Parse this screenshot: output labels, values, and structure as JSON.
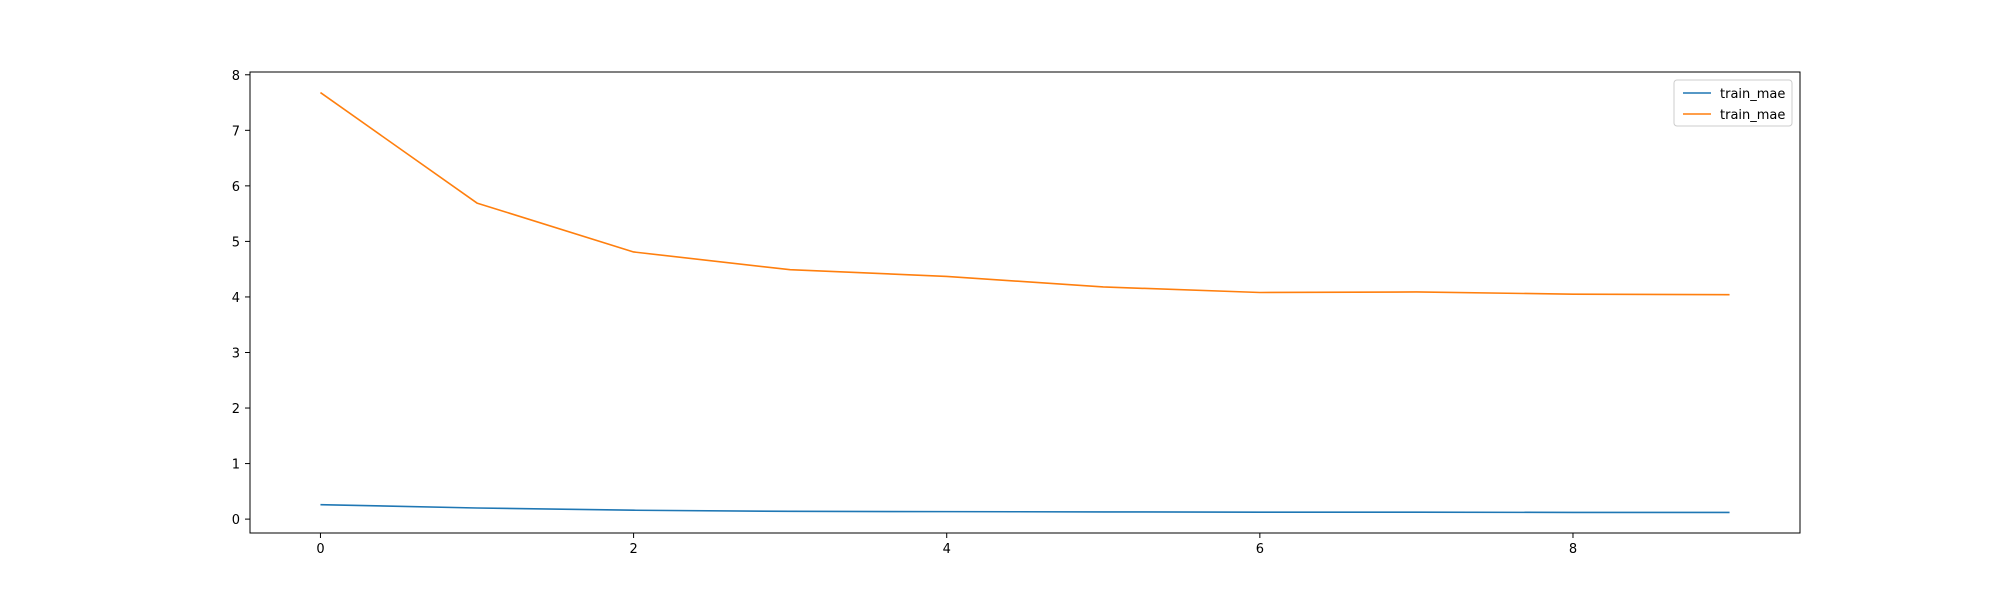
{
  "chart_data": {
    "type": "line",
    "x": [
      0,
      1,
      2,
      3,
      4,
      5,
      6,
      7,
      8,
      9
    ],
    "series": [
      {
        "name": "train_mae",
        "color": "#1f77b4",
        "values": [
          0.26,
          0.2,
          0.16,
          0.14,
          0.135,
          0.13,
          0.125,
          0.125,
          0.12,
          0.12
        ]
      },
      {
        "name": "train_mae",
        "color": "#ff7f0e",
        "values": [
          7.68,
          5.69,
          4.81,
          4.49,
          4.37,
          4.18,
          4.08,
          4.09,
          4.05,
          4.04
        ]
      }
    ],
    "xlim": [
      -0.45,
      9.45
    ],
    "ylim": [
      -0.25,
      8.05
    ],
    "xticks": [
      0,
      2,
      4,
      6,
      8
    ],
    "yticks": [
      0,
      1,
      2,
      3,
      4,
      5,
      6,
      7,
      8
    ],
    "xtick_labels": [
      "0",
      "2",
      "4",
      "6",
      "8"
    ],
    "ytick_labels": [
      "0",
      "1",
      "2",
      "3",
      "4",
      "5",
      "6",
      "7",
      "8"
    ],
    "title": "",
    "xlabel": "",
    "ylabel": "",
    "grid": false,
    "legend_position": "top-right"
  }
}
